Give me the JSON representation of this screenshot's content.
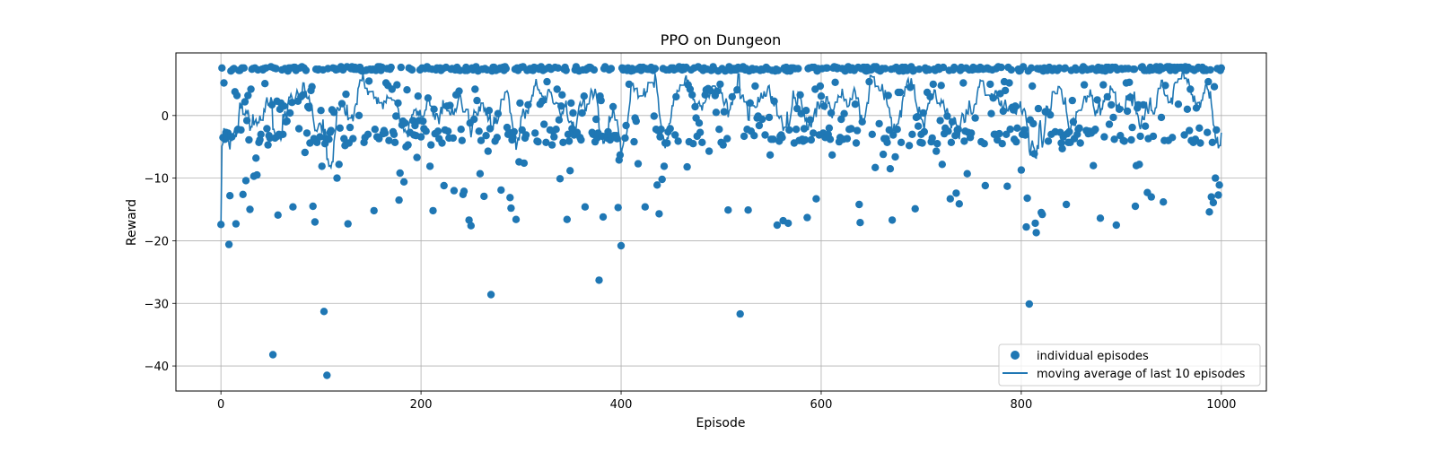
{
  "chart_data": {
    "type": "scatter",
    "title": "PPO on Dungeon",
    "xlabel": "Episode",
    "ylabel": "Reward",
    "xlim": [
      -45,
      1045
    ],
    "ylim": [
      -44,
      10
    ],
    "xticks": [
      0,
      200,
      400,
      600,
      800,
      1000
    ],
    "yticks": [
      -40,
      -30,
      -20,
      -10,
      0
    ],
    "xtick_labels": [
      "0",
      "200",
      "400",
      "600",
      "800",
      "1000"
    ],
    "ytick_labels": [
      "−40",
      "−30",
      "−20",
      "−10",
      "0"
    ],
    "grid": true,
    "legend_position": "lower-right",
    "color": "#1f77b4",
    "series": [
      {
        "name": "individual episodes",
        "kind": "scatter"
      },
      {
        "name": "moving average of last 10 episodes",
        "kind": "line"
      }
    ],
    "outliers": {
      "x": [
        8,
        52,
        103,
        106,
        270,
        378,
        400,
        519,
        808,
        815
      ],
      "y": [
        -20.6,
        -38.2,
        -31.3,
        -41.5,
        -28.6,
        -26.3,
        -20.8,
        -31.7,
        -30.1,
        -18.7
      ]
    },
    "episodes": {
      "x_start": 0,
      "x_step": 1,
      "count": 1001,
      "random_seed": 4242,
      "note": "individual points: most near +7.5, others scattered between about -18 and +5"
    }
  }
}
